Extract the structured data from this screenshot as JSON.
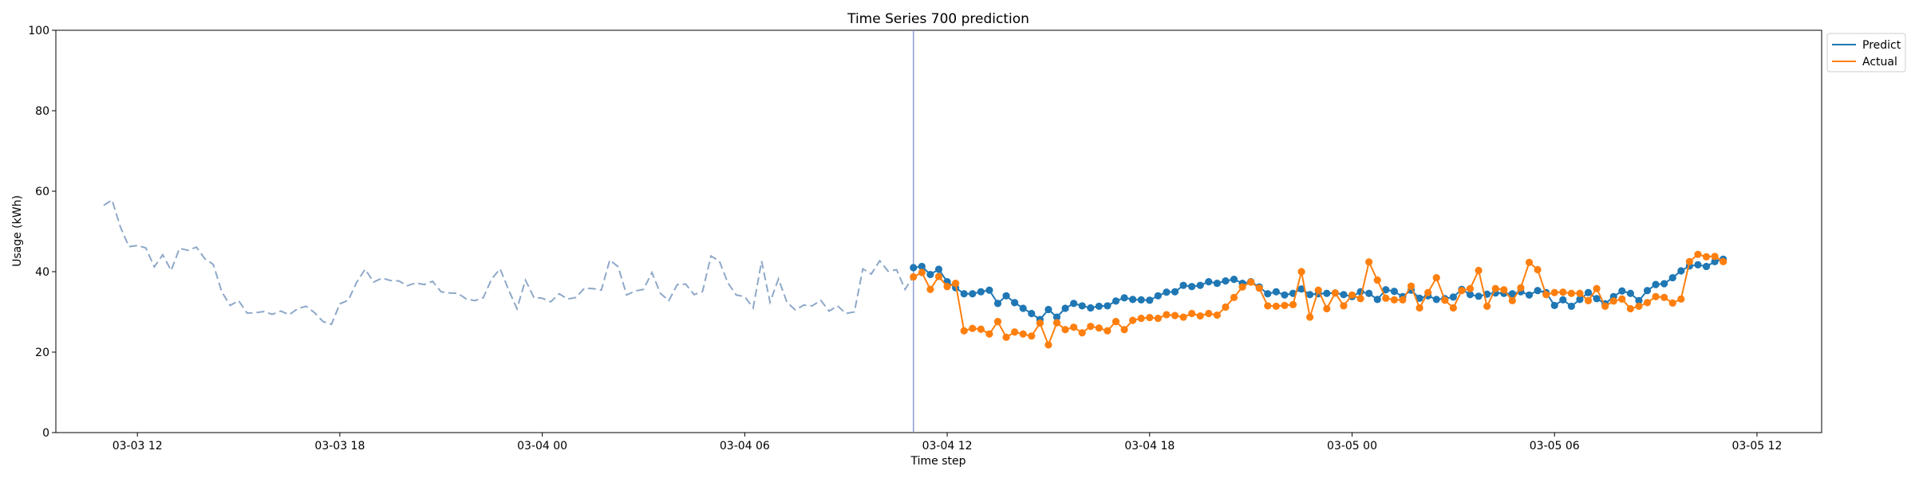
{
  "chart_data": {
    "type": "line",
    "title": "Time Series 700 prediction",
    "xlabel": "Time step",
    "ylabel": "Usage (kWh)",
    "ylim": [
      0,
      100
    ],
    "yticks": [
      0,
      20,
      40,
      60,
      80,
      100
    ],
    "xlim": [
      "2025-03-03 09:35",
      "2025-03-05 13:55"
    ],
    "xticks": [
      {
        "t": "2025-03-03 12:00",
        "label": "03-03 12"
      },
      {
        "t": "2025-03-03 18:00",
        "label": "03-03 18"
      },
      {
        "t": "2025-03-04 00:00",
        "label": "03-04 00"
      },
      {
        "t": "2025-03-04 06:00",
        "label": "03-04 06"
      },
      {
        "t": "2025-03-04 12:00",
        "label": "03-04 12"
      },
      {
        "t": "2025-03-04 18:00",
        "label": "03-04 18"
      },
      {
        "t": "2025-03-05 00:00",
        "label": "03-05 00"
      },
      {
        "t": "2025-03-05 06:00",
        "label": "03-05 06"
      },
      {
        "t": "2025-03-05 12:00",
        "label": "03-05 12"
      }
    ],
    "forecast_start": "2025-03-04 11:00",
    "interval_minutes": 15,
    "legend_position": "upper-right outside",
    "colors": {
      "history": "#8ea8c8",
      "predict": "#1f77b4",
      "actual": "#ff7f0e",
      "divider": "#7a8fc8"
    },
    "history": {
      "start": "2025-03-03 11:00",
      "values": [
        56.5,
        57.8,
        51.0,
        46.2,
        46.5,
        45.9,
        41.2,
        44.2,
        40.3,
        45.8,
        45.3,
        46.1,
        43.2,
        41.8,
        35.0,
        31.6,
        32.8,
        29.7,
        29.8,
        30.1,
        29.4,
        30.2,
        29.3,
        30.8,
        31.4,
        29.8,
        27.6,
        26.9,
        32.0,
        32.9,
        37.4,
        40.6,
        37.4,
        38.4,
        37.8,
        37.7,
        36.5,
        37.2,
        36.8,
        37.6,
        35.0,
        34.7,
        34.6,
        33.2,
        32.8,
        33.5,
        38.2,
        40.7,
        35.5,
        30.8,
        37.9,
        33.6,
        33.4,
        32.5,
        34.5,
        33.2,
        33.6,
        35.9,
        35.8,
        35.4,
        42.9,
        41.2,
        34.2,
        35.2,
        35.6,
        39.8,
        34.6,
        32.8,
        36.8,
        36.9,
        34.3,
        35.1,
        43.9,
        42.6,
        37.2,
        34.2,
        33.8,
        31.0,
        42.6,
        32.4,
        38.2,
        32.4,
        30.5,
        31.7,
        31.5,
        32.9,
        30.2,
        31.5,
        29.6,
        30.0,
        40.7,
        39.4,
        42.7,
        40.1,
        40.5,
        35.6,
        38.9
      ]
    },
    "series": [
      {
        "name": "Predict",
        "start": "2025-03-04 11:00",
        "values": [
          41.0,
          41.3,
          39.3,
          40.6,
          37.5,
          36.0,
          34.5,
          34.5,
          35.0,
          35.4,
          32.1,
          34.0,
          32.3,
          30.9,
          29.6,
          28.1,
          30.6,
          28.7,
          30.9,
          32.1,
          31.5,
          31.0,
          31.4,
          31.5,
          32.7,
          33.5,
          33.1,
          33.0,
          32.9,
          34.0,
          34.9,
          35.0,
          36.6,
          36.3,
          36.6,
          37.5,
          37.1,
          37.7,
          38.1,
          37.1,
          37.5,
          36.2,
          34.5,
          35.0,
          34.2,
          34.6,
          35.7,
          34.3,
          34.5,
          34.6,
          34.7,
          34.3,
          33.8,
          35.0,
          34.6,
          33.1,
          35.5,
          35.1,
          33.8,
          35.4,
          33.4,
          34.0,
          33.1,
          33.3,
          33.7,
          35.6,
          34.3,
          33.9,
          34.4,
          34.7,
          34.6,
          34.5,
          35.0,
          34.2,
          35.3,
          34.8,
          31.6,
          33.0,
          31.4,
          33.1,
          34.8,
          33.3,
          32.0,
          33.8,
          35.2,
          34.6,
          32.8,
          35.3,
          36.8,
          37.0,
          38.5,
          40.2,
          41.4,
          41.7,
          41.3,
          42.5,
          43.1
        ]
      },
      {
        "name": "Actual",
        "start": "2025-03-04 11:00",
        "values": [
          38.7,
          39.8,
          35.6,
          38.8,
          36.3,
          37.1,
          25.3,
          25.9,
          25.7,
          24.5,
          27.6,
          23.7,
          25.0,
          24.5,
          24.0,
          27.2,
          21.8,
          27.3,
          25.6,
          26.2,
          24.8,
          26.4,
          26.0,
          25.3,
          27.6,
          25.6,
          27.9,
          28.4,
          28.6,
          28.4,
          29.3,
          29.1,
          28.7,
          29.6,
          29.0,
          29.6,
          29.2,
          31.2,
          33.6,
          36.2,
          37.4,
          35.9,
          31.5,
          31.4,
          31.6,
          31.8,
          40.0,
          28.7,
          35.4,
          30.8,
          34.7,
          31.5,
          34.2,
          33.3,
          42.4,
          37.9,
          33.4,
          33.0,
          33.0,
          36.4,
          31.0,
          34.8,
          38.5,
          32.9,
          31.0,
          35.3,
          35.8,
          40.3,
          31.4,
          35.8,
          35.5,
          32.8,
          36.0,
          42.3,
          40.5,
          34.3,
          34.8,
          34.9,
          34.6,
          34.6,
          32.8,
          35.8,
          31.4,
          32.7,
          33.2,
          30.8,
          31.4,
          32.3,
          33.8,
          33.6,
          32.2,
          33.2,
          42.5,
          44.3,
          43.7,
          43.8,
          42.5
        ]
      }
    ]
  }
}
